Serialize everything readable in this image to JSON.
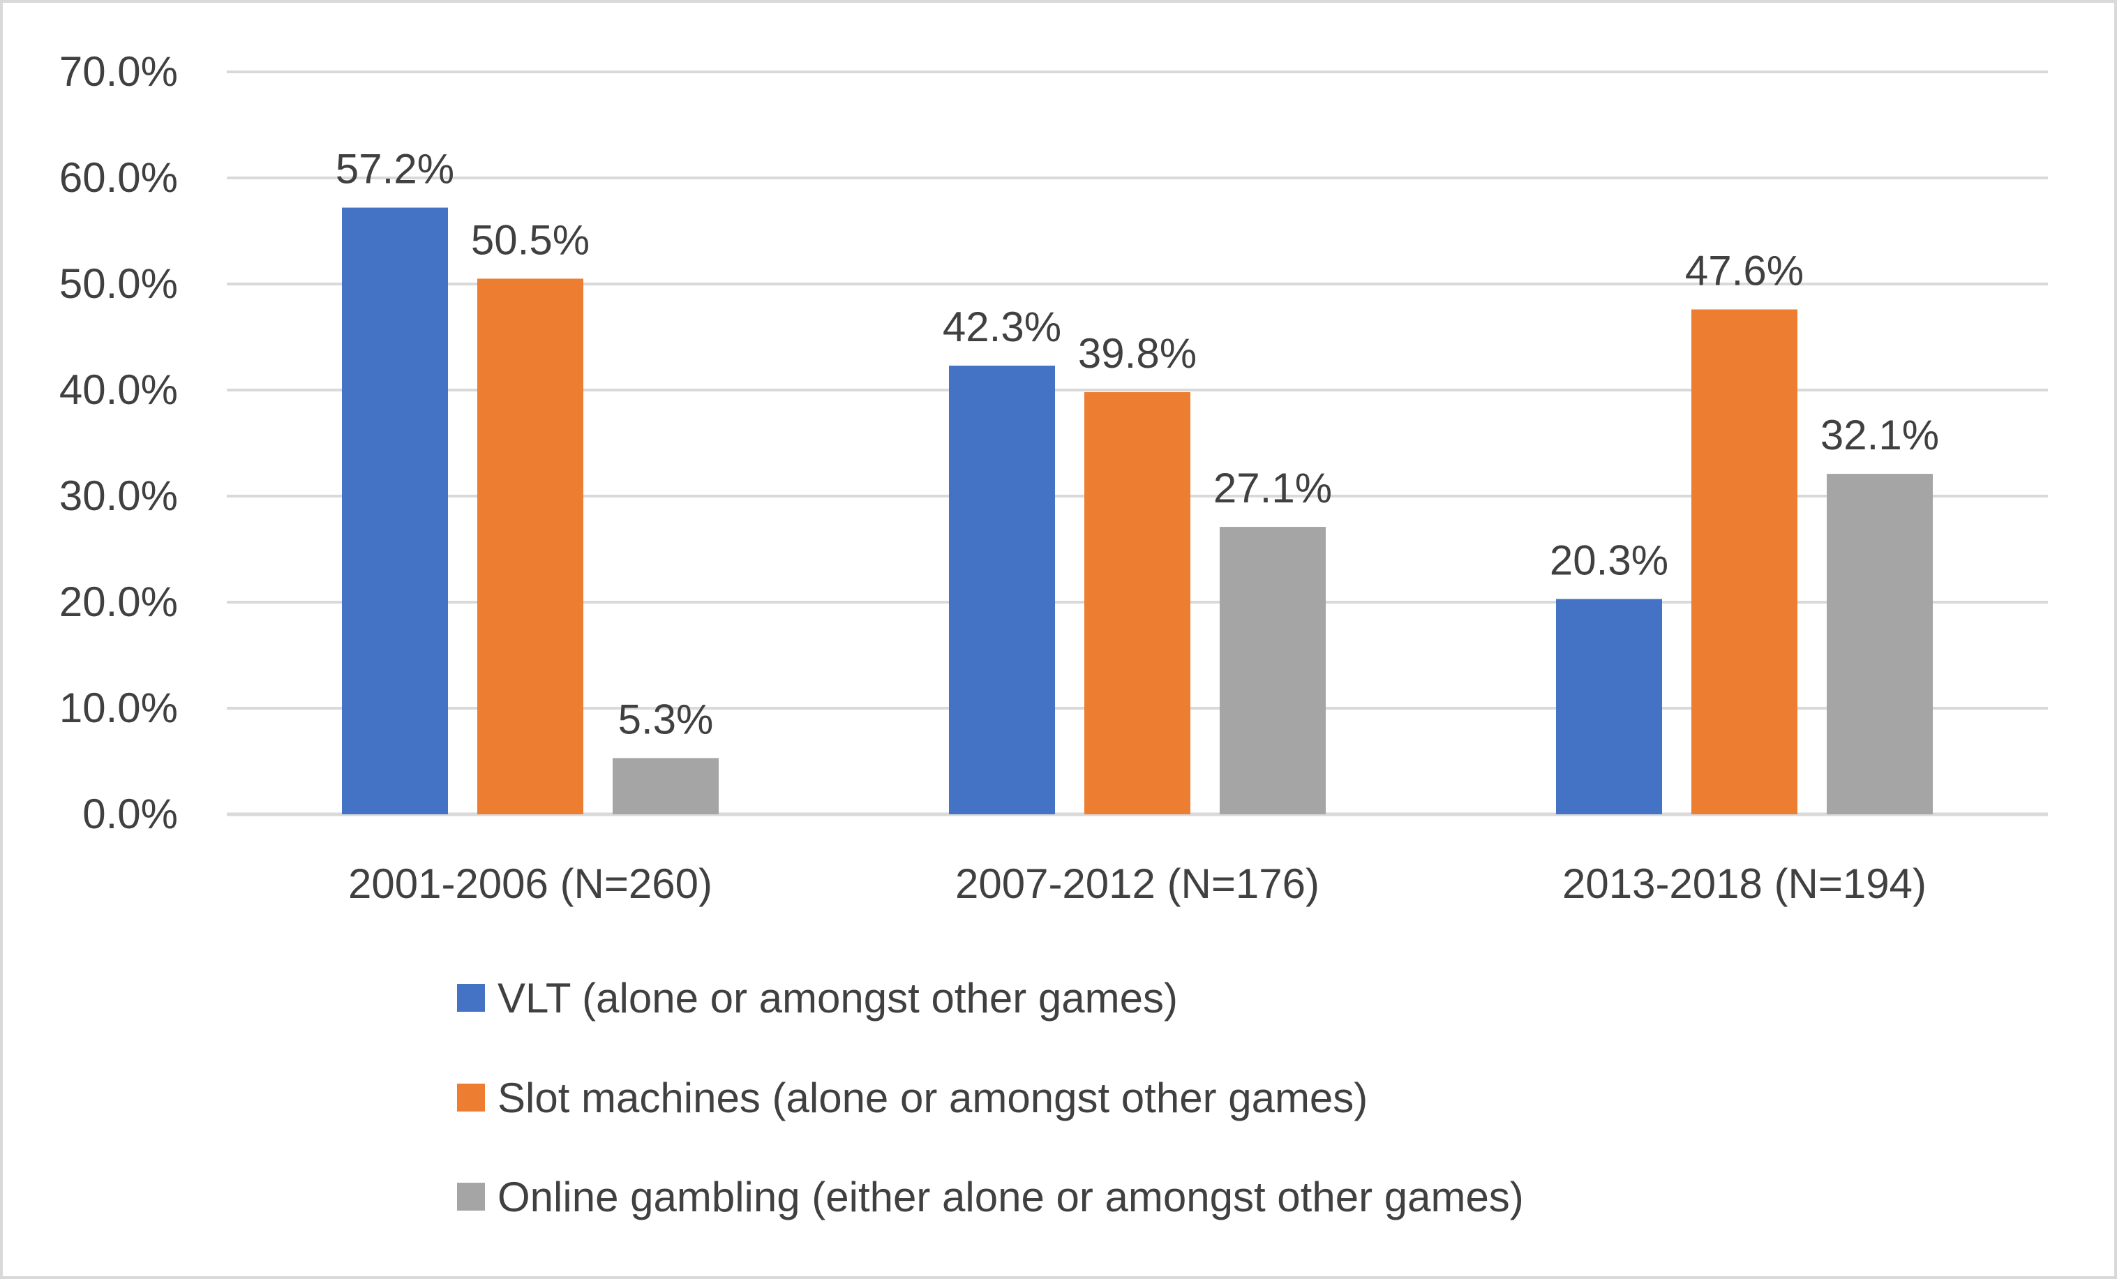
{
  "chart_data": {
    "type": "bar",
    "title": "",
    "xlabel": "",
    "ylabel": "",
    "categories": [
      "2001-2006 (N=260)",
      "2007-2012 (N=176)",
      "2013-2018 (N=194)"
    ],
    "series": [
      {
        "name": "VLT (alone or amongst other games)",
        "color": "#4472C4",
        "values": [
          57.2,
          42.3,
          20.3
        ],
        "labels": [
          "57.2%",
          "42.3%",
          "20.3%"
        ]
      },
      {
        "name": "Slot machines (alone or amongst other games)",
        "color": "#ED7D31",
        "values": [
          50.5,
          39.8,
          47.6
        ],
        "labels": [
          "50.5%",
          "39.8%",
          "47.6%"
        ]
      },
      {
        "name": "Online gambling (either alone or amongst other games)",
        "color": "#A5A5A5",
        "values": [
          5.3,
          27.1,
          32.1
        ],
        "labels": [
          "5.3%",
          "27.1%",
          "32.1%"
        ]
      }
    ],
    "ylim": [
      0,
      70
    ],
    "yticks": [
      0,
      10,
      20,
      30,
      40,
      50,
      60,
      70
    ],
    "ytick_labels": [
      "0.0%",
      "10.0%",
      "20.0%",
      "30.0%",
      "40.0%",
      "50.0%",
      "60.0%",
      "70.0%"
    ],
    "grid": true,
    "legend_position": "bottom"
  }
}
